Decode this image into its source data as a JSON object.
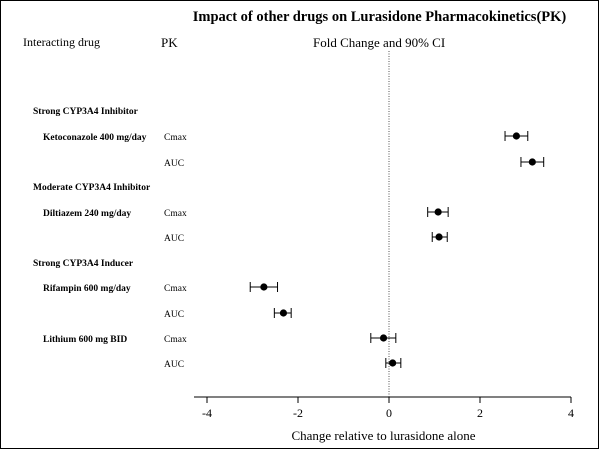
{
  "chart_data": {
    "type": "scatter",
    "title": "Impact of other drugs on Lurasidone Pharmacokinetics(PK)",
    "column_headers": {
      "drug": "Interacting drug",
      "pk": "PK",
      "effect": "Fold Change and 90% CI"
    },
    "xlabel": "Change relative to lurasidone alone",
    "xlim": [
      -4.4,
      4
    ],
    "xticks": [
      -4,
      -2,
      0,
      2,
      4
    ],
    "reference_line_x": 0,
    "group_labels": [
      "Strong CYP3A4 Inhibitor",
      "Moderate CYP3A4 Inhibitor",
      "Strong CYP3A4 Inducer"
    ],
    "drug_labels": [
      "Ketoconazole 400 mg/day",
      "Diltiazem 240 mg/day",
      "Rifampin 600 mg/day",
      "Lithium 600 mg BID"
    ],
    "rows": [
      {
        "drug": "Ketoconazole 400 mg/day",
        "pk": "Cmax",
        "estimate": 2.8,
        "ci": [
          2.55,
          3.05
        ]
      },
      {
        "drug": "Ketoconazole 400 mg/day",
        "pk": "AUC",
        "estimate": 3.15,
        "ci": [
          2.9,
          3.4
        ]
      },
      {
        "drug": "Diltiazem 240 mg/day",
        "pk": "Cmax",
        "estimate": 1.08,
        "ci": [
          0.85,
          1.3
        ]
      },
      {
        "drug": "Diltiazem 240 mg/day",
        "pk": "AUC",
        "estimate": 1.1,
        "ci": [
          0.95,
          1.28
        ]
      },
      {
        "drug": "Rifampin 600 mg/day",
        "pk": "Cmax",
        "estimate": -2.75,
        "ci": [
          -3.05,
          -2.45
        ]
      },
      {
        "drug": "Rifampin 600 mg/day",
        "pk": "AUC",
        "estimate": -2.32,
        "ci": [
          -2.52,
          -2.15
        ]
      },
      {
        "drug": "Lithium 600 mg BID",
        "pk": "Cmax",
        "estimate": -0.12,
        "ci": [
          -0.4,
          0.15
        ]
      },
      {
        "drug": "Lithium 600 mg BID",
        "pk": "AUC",
        "estimate": 0.08,
        "ci": [
          -0.07,
          0.26
        ]
      }
    ]
  }
}
